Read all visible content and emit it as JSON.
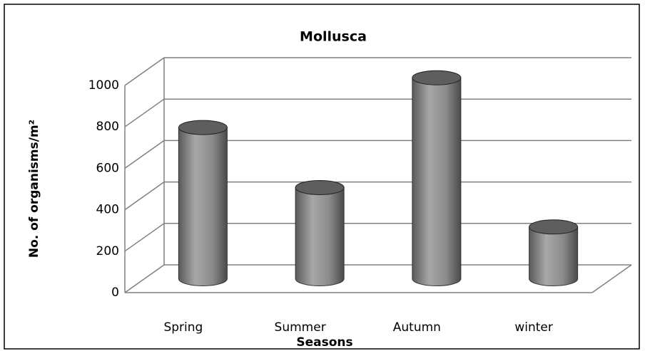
{
  "chart_data": {
    "type": "bar3d",
    "title": "Mollusca",
    "x_label": "Seasons",
    "y_label": "No. of organisms/m²",
    "categories": [
      "Spring",
      "Summer",
      "Autumn",
      "winter"
    ],
    "values": [
      730,
      440,
      970,
      250
    ],
    "color": "#808080",
    "ylim": [
      0,
      1000
    ],
    "yticks": [
      0,
      200,
      400,
      600,
      800,
      1000
    ],
    "grid": true
  }
}
